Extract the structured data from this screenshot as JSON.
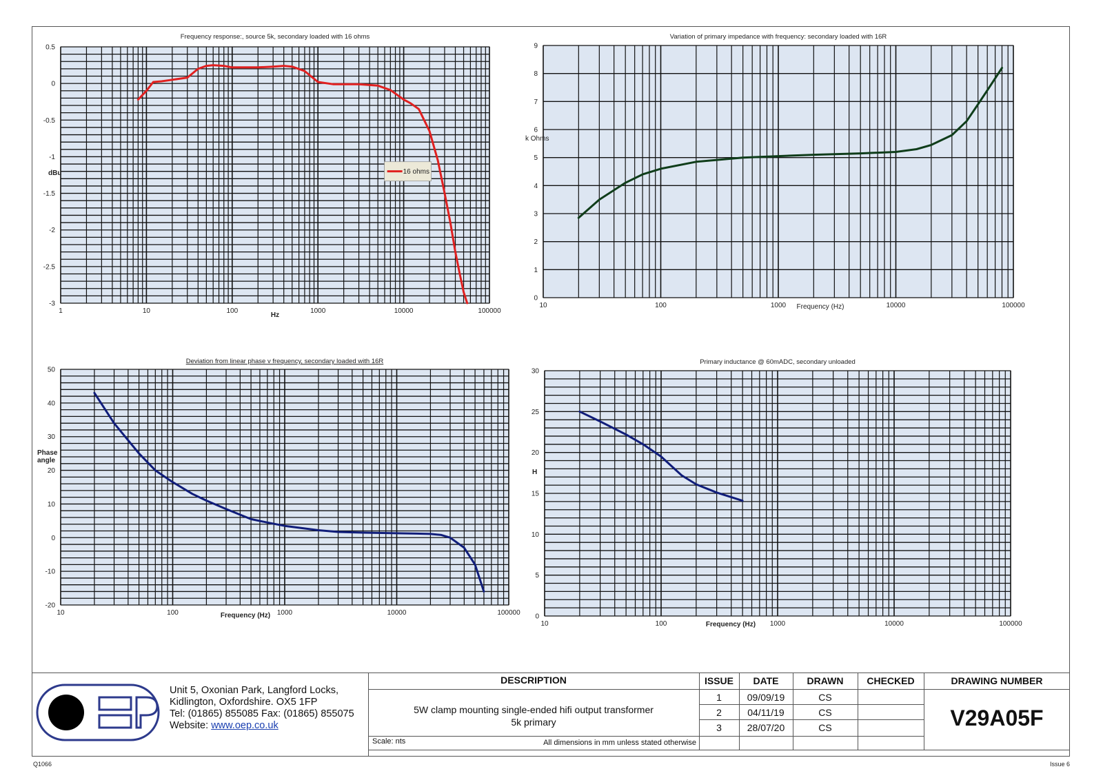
{
  "chart_data": [
    {
      "type": "line",
      "title": "Frequency response:, source 5k, secondary loaded with 16 ohms",
      "xlabel": "Hz",
      "ylabel": "dBu",
      "xscale": "log",
      "xlim": [
        1,
        100000
      ],
      "ylim": [
        -3,
        0.5
      ],
      "yticks": [
        0.5,
        0,
        -0.5,
        -1,
        -1.5,
        -2,
        -2.5,
        -3
      ],
      "yticklabels": [
        "0.5",
        "0",
        "-0.5",
        "-1",
        "-1.5",
        "-2",
        "-2.5",
        "-3"
      ],
      "xticklabels": [
        "1",
        "10",
        "100",
        "1000",
        "10000",
        "100000"
      ],
      "ygrid_step": 0.1,
      "legend_placement": "center-right",
      "series": [
        {
          "name": "16 ohms",
          "color": "#e02020",
          "x": [
            8,
            10,
            12,
            15,
            20,
            30,
            40,
            50,
            60,
            80,
            100,
            150,
            200,
            300,
            400,
            500,
            700,
            1000,
            1500,
            2000,
            3000,
            5000,
            7000,
            10000,
            12000,
            15000,
            20000,
            25000,
            30000,
            35000,
            40000,
            45000,
            50000,
            55000
          ],
          "y": [
            -0.22,
            -0.1,
            0.02,
            0.03,
            0.05,
            0.08,
            0.2,
            0.24,
            0.25,
            0.24,
            0.22,
            0.22,
            0.22,
            0.23,
            0.24,
            0.23,
            0.17,
            0.02,
            -0.01,
            -0.01,
            -0.01,
            -0.03,
            -0.09,
            -0.22,
            -0.27,
            -0.35,
            -0.65,
            -1.05,
            -1.5,
            -1.9,
            -2.3,
            -2.6,
            -2.85,
            -3.0
          ]
        }
      ]
    },
    {
      "type": "line",
      "title": "Variation of primary impedance with frequency: secondary loaded with 16R",
      "xlabel": "Frequency (Hz)",
      "ylabel": "k Ohms",
      "xscale": "log",
      "xlim": [
        10,
        100000
      ],
      "ylim": [
        0,
        9
      ],
      "yticks": [
        0,
        1,
        2,
        3,
        4,
        5,
        6,
        7,
        8,
        9
      ],
      "yticklabels": [
        "0",
        "1",
        "2",
        "3",
        "4",
        "5",
        "6",
        "7",
        "8",
        "9"
      ],
      "xticklabels": [
        "10",
        "100",
        "1000",
        "10000",
        "100000"
      ],
      "ygrid_step": 1,
      "series": [
        {
          "color": "#0f3d1a",
          "x": [
            20,
            30,
            50,
            70,
            100,
            200,
            500,
            1000,
            2000,
            5000,
            10000,
            15000,
            20000,
            30000,
            40000,
            50000,
            60000,
            80000
          ],
          "y": [
            2.85,
            3.5,
            4.1,
            4.4,
            4.6,
            4.85,
            5.0,
            5.05,
            5.1,
            5.15,
            5.2,
            5.3,
            5.45,
            5.8,
            6.3,
            6.9,
            7.4,
            8.2
          ]
        }
      ]
    },
    {
      "type": "line",
      "title": "Deviation from linear phase v frequency, secondary loaded with 16R",
      "xlabel": "Frequency (Hz)",
      "ylabel": "Phase angle",
      "xscale": "log",
      "xlim": [
        10,
        100000
      ],
      "ylim": [
        -20,
        50
      ],
      "yticks": [
        50,
        40,
        30,
        20,
        10,
        0,
        -10,
        -20
      ],
      "yticklabels": [
        "50",
        "40",
        "30",
        "20",
        "10",
        "0",
        "-10",
        "-20"
      ],
      "xticklabels": [
        "10",
        "100",
        "1000",
        "10000",
        "100000"
      ],
      "ygrid_step": 2,
      "series": [
        {
          "color": "#101d7a",
          "x": [
            20,
            30,
            50,
            70,
            100,
            150,
            200,
            300,
            500,
            700,
            1000,
            2000,
            3000,
            5000,
            10000,
            15000,
            20000,
            25000,
            30000,
            40000,
            50000,
            60000
          ],
          "y": [
            43,
            34,
            25,
            20,
            16.5,
            13,
            11,
            8.5,
            5.5,
            4.5,
            3.5,
            2.2,
            1.7,
            1.5,
            1.3,
            1.2,
            1.1,
            0.8,
            0,
            -3,
            -8,
            -16
          ]
        }
      ]
    },
    {
      "type": "line",
      "title": "Primary inductance @ 60mADC, secondary unloaded",
      "xlabel": "Frequency (Hz)",
      "ylabel": "H",
      "xscale": "log",
      "xlim": [
        10,
        100000
      ],
      "ylim": [
        0,
        30
      ],
      "yticks": [
        0,
        5,
        10,
        15,
        20,
        25,
        30
      ],
      "yticklabels": [
        "0",
        "5",
        "10",
        "15",
        "20",
        "25",
        "30"
      ],
      "xticklabels": [
        "10",
        "100",
        "1000",
        "10000",
        "100000"
      ],
      "ygrid_step": 1,
      "series": [
        {
          "color": "#101d7a",
          "x": [
            20,
            30,
            50,
            70,
            100,
            150,
            200,
            300,
            500
          ],
          "y": [
            25,
            23.8,
            22.2,
            21,
            19.5,
            17.2,
            16.1,
            15.1,
            14.1
          ]
        }
      ]
    }
  ],
  "title_block": {
    "address": [
      "Unit 5, Oxonian Park, Langford Locks,",
      "Kidlington, Oxfordshire.  OX5 1FP",
      "Tel: (01865) 855085 Fax: (01865) 855075"
    ],
    "website_label": "Website:",
    "website": "www.oep.co.uk",
    "description_header": "DESCRIPTION",
    "description_line1": "5W clamp mounting single-ended hifi output transformer",
    "description_line2": "5k primary",
    "scale": "Scale: nts",
    "dimensions_note": "All dimensions in mm unless stated otherwise",
    "headers": {
      "issue": "ISSUE",
      "date": "DATE",
      "drawn": "DRAWN",
      "checked": "CHECKED",
      "drawing_number": "DRAWING NUMBER"
    },
    "rows": [
      {
        "issue": "1",
        "date": "09/09/19",
        "drawn": "CS"
      },
      {
        "issue": "2",
        "date": "04/11/19",
        "drawn": "CS"
      },
      {
        "issue": "3",
        "date": "28/07/20",
        "drawn": "CS"
      }
    ],
    "drawing_number": "V29A05F",
    "logo_letters": "OEP",
    "colors": {
      "logo_blue": "#2d3a8c",
      "link": "#1a3fb0"
    }
  },
  "footer": {
    "left": "Q1066",
    "right": "Issue 6"
  }
}
